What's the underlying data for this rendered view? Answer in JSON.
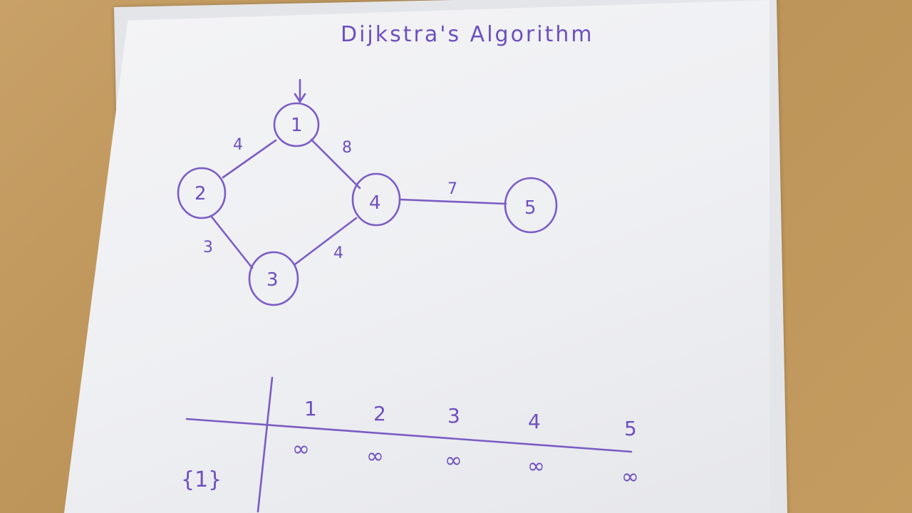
{
  "title": "Dijkstra's Algorithm",
  "source_marker": "↓",
  "nodes": [
    {
      "id": "n1",
      "label": "1"
    },
    {
      "id": "n2",
      "label": "2"
    },
    {
      "id": "n3",
      "label": "3"
    },
    {
      "id": "n4",
      "label": "4"
    },
    {
      "id": "n5",
      "label": "5"
    }
  ],
  "edges": [
    {
      "from": "1",
      "to": "2",
      "weight": "4"
    },
    {
      "from": "1",
      "to": "4",
      "weight": "8"
    },
    {
      "from": "2",
      "to": "3",
      "weight": "3"
    },
    {
      "from": "3",
      "to": "4",
      "weight": "4"
    },
    {
      "from": "4",
      "to": "5",
      "weight": "7"
    }
  ],
  "table": {
    "headers": [
      "1",
      "2",
      "3",
      "4",
      "5"
    ],
    "row_label": "{1}",
    "values": [
      "∞",
      "∞",
      "∞",
      "∞",
      "∞"
    ]
  },
  "colors": {
    "ink": "#7b5cc4",
    "paper": "#f0f1f3",
    "table": "#c29a5e"
  }
}
